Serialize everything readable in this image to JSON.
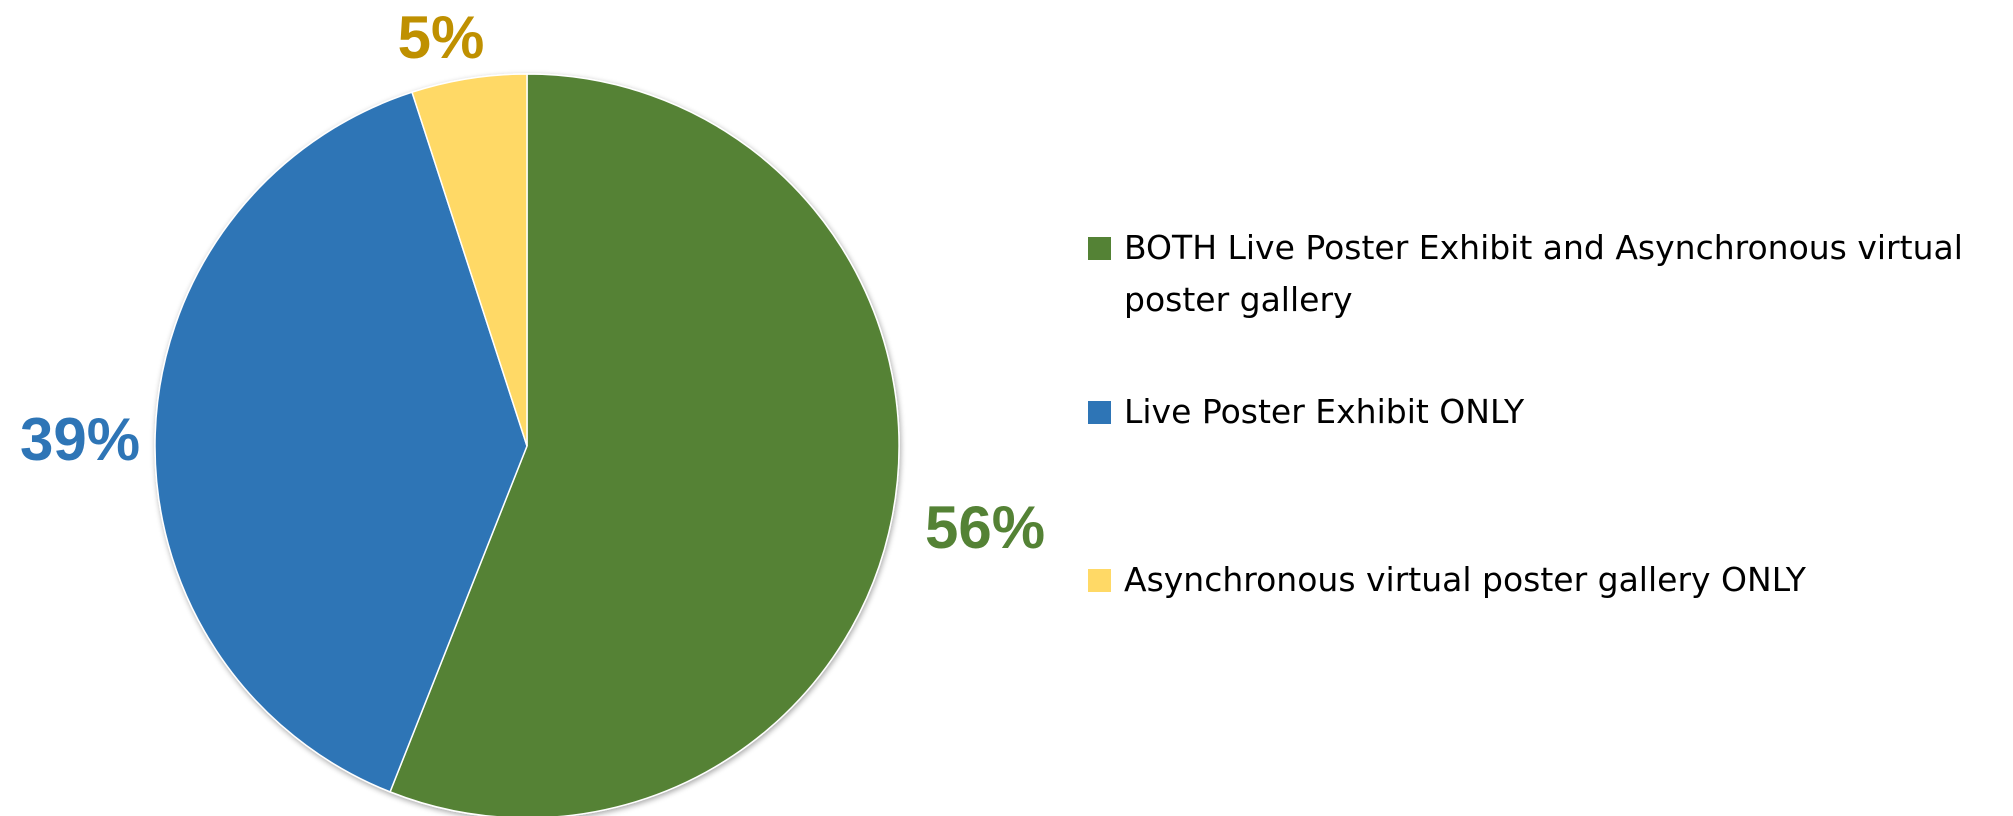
{
  "chart_data": {
    "type": "pie",
    "title": "",
    "slices": [
      {
        "label": "BOTH Live Poster Exhibit and Asynchronous virtual poster gallery",
        "value": 56,
        "value_label": "56%",
        "color": "#548235",
        "label_color": "#548235"
      },
      {
        "label": "Live Poster Exhibit ONLY",
        "value": 39,
        "value_label": "39%",
        "color": "#2E75B6",
        "label_color": "#2E75B6"
      },
      {
        "label": "Asynchronous virtual poster gallery ONLY",
        "value": 5,
        "value_label": "5%",
        "color": "#FFD966",
        "label_color": "#BF9000"
      }
    ],
    "start_angle": "12 o'clock",
    "direction": "clockwise",
    "legend_position": "right"
  }
}
